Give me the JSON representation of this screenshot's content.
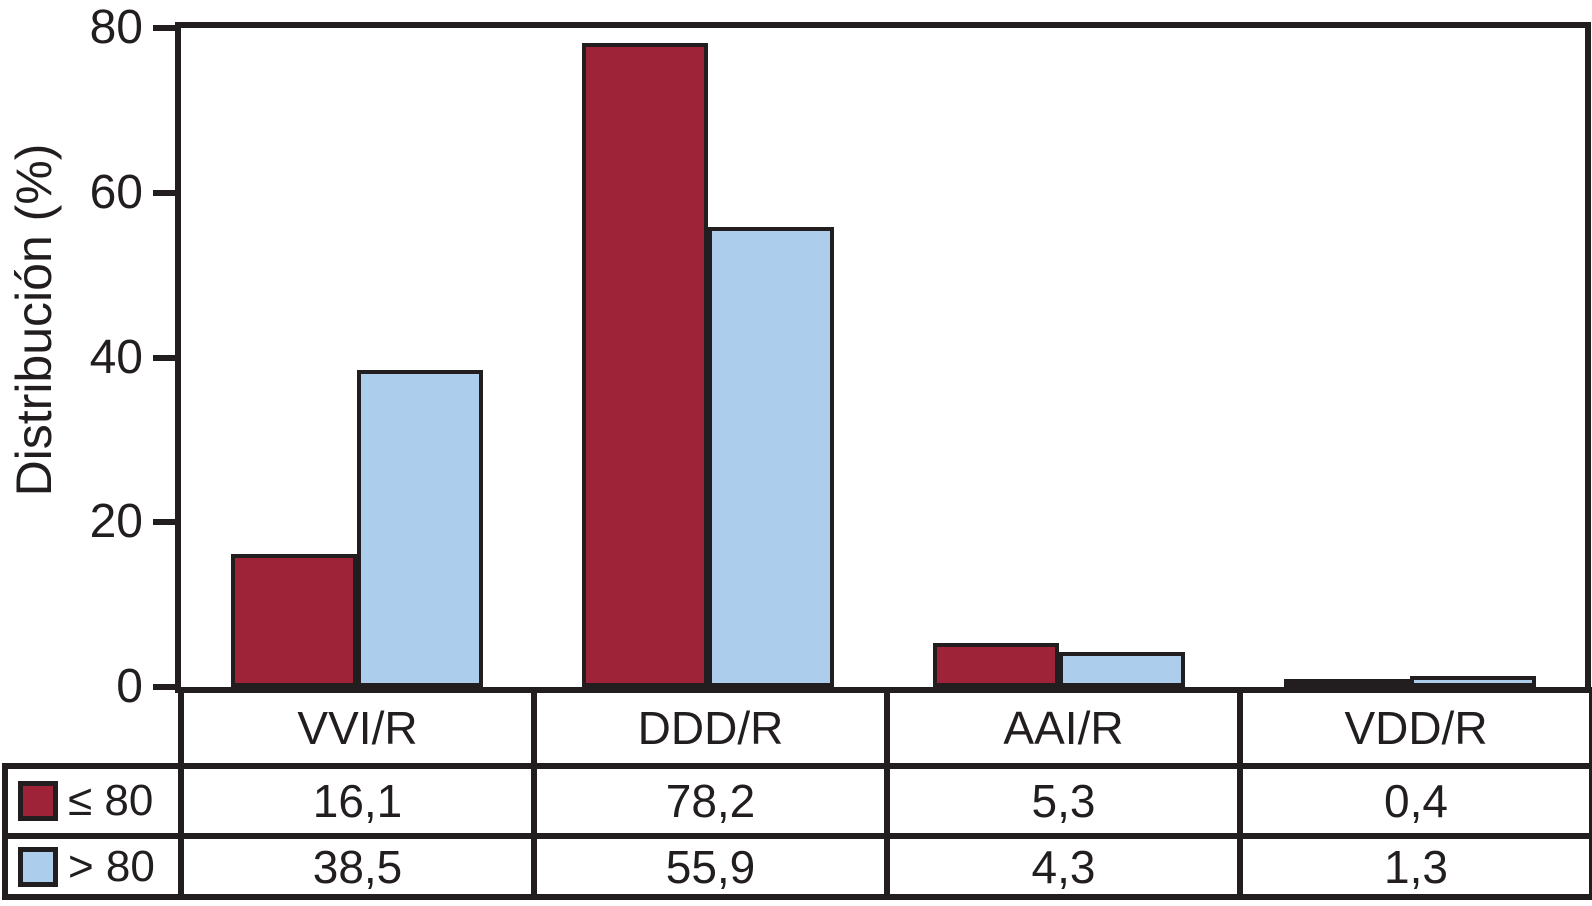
{
  "figure": {
    "background": "#FFFFFF",
    "line_color": "#221E20",
    "text_color": "#221E20"
  },
  "chart_data": {
    "type": "bar",
    "title": "",
    "xlabel": "",
    "ylabel": "Distribución (%)",
    "ylim": [
      0,
      80
    ],
    "yticks": [
      0,
      20,
      40,
      60,
      80
    ],
    "grid": false,
    "legend_position": "table-left",
    "categories": [
      "VVI/R",
      "DDD/R",
      "AAI/R",
      "VDD/R"
    ],
    "series": [
      {
        "name": "≤ 80",
        "color": "#9E2238",
        "values": [
          16.1,
          78.2,
          5.3,
          0.4
        ],
        "labels": [
          "16,1",
          "78,2",
          "5,3",
          "0,4"
        ]
      },
      {
        "name": "> 80",
        "color": "#ACCDEB",
        "values": [
          38.5,
          55.9,
          4.3,
          1.3
        ],
        "labels": [
          "38,5",
          "55,9",
          "4,3",
          "1,3"
        ]
      }
    ]
  }
}
